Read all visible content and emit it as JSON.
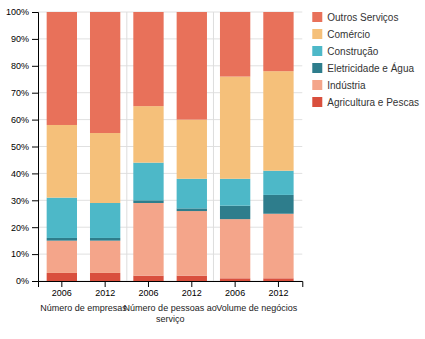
{
  "chart_data": {
    "type": "bar",
    "stacked": true,
    "categories": [
      "2006",
      "2012",
      "2006",
      "2012",
      "2006",
      "2012"
    ],
    "group_labels": [
      "Número de empresas",
      "Número de pessoas ao\nserviço",
      "Volume de negócios"
    ],
    "series": [
      {
        "name": "Agricultura e Pescas",
        "color": "#d94f3d",
        "values": [
          3.0,
          3.0,
          2.0,
          2.0,
          1.0,
          1.0
        ]
      },
      {
        "name": "Indústria",
        "color": "#f4a58a",
        "values": [
          12.0,
          12.0,
          27.0,
          24.0,
          22.0,
          24.0
        ]
      },
      {
        "name": "Eletricidade e Água",
        "color": "#2e7d8c",
        "values": [
          1.0,
          1.0,
          1.0,
          1.0,
          5.0,
          7.0
        ]
      },
      {
        "name": "Construção",
        "color": "#4db8c8",
        "values": [
          15.0,
          13.0,
          14.0,
          11.0,
          10.0,
          9.0
        ]
      },
      {
        "name": "Comércio",
        "color": "#f5c07a",
        "values": [
          27.0,
          26.0,
          21.0,
          22.0,
          38.0,
          37.0
        ]
      },
      {
        "name": "Outros Serviços",
        "color": "#e8715a",
        "values": [
          42.0,
          45.0,
          35.0,
          40.0,
          24.0,
          22.0
        ]
      }
    ],
    "ylim": [
      0,
      100
    ],
    "yticks": [
      {
        "value": 0,
        "label": "0%"
      },
      {
        "value": 10,
        "label": "10%"
      },
      {
        "value": 20,
        "label": "20%"
      },
      {
        "value": 30,
        "label": "30%"
      },
      {
        "value": 40,
        "label": "40%"
      },
      {
        "value": 50,
        "label": "50%"
      },
      {
        "value": 60,
        "label": "60%"
      },
      {
        "value": 70,
        "label": "70%"
      },
      {
        "value": 80,
        "label": "80%"
      },
      {
        "value": 90,
        "label": "90%"
      },
      {
        "value": 100,
        "label": "100%"
      }
    ],
    "grid": true,
    "legend": "right"
  }
}
